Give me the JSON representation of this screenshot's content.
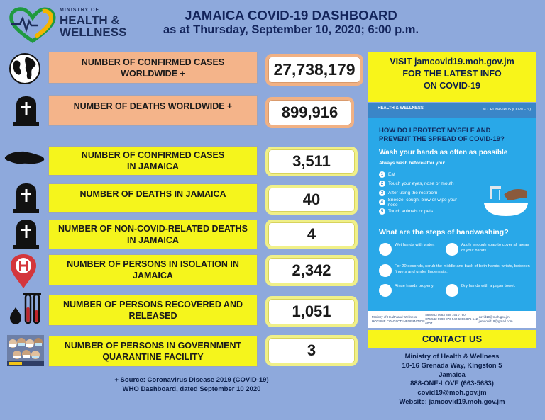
{
  "header": {
    "logo_ministry": "MINISTRY OF",
    "logo_health": "HEALTH &",
    "logo_wellness": "WELLNESS",
    "title": "JAMAICA COVID-19 DASHBOARD",
    "subtitle": "as at Thursday, September 10, 2020; 6:00 p.m."
  },
  "stats": [
    {
      "label_line1": "NUMBER OF CONFIRMED CASES",
      "label_line2": "WORLDWIDE +",
      "value": "27,738,179",
      "icon": "globe-icon"
    },
    {
      "label_line1": "NUMBER OF DEATHS WORLDWIDE +",
      "label_line2": "",
      "value": "899,916",
      "icon": "tombstone-icon"
    },
    {
      "label_line1": "NUMBER OF CONFIRMED CASES",
      "label_line2": "IN JAMAICA",
      "value": "3,511",
      "icon": "jamaica-map-icon"
    },
    {
      "label_line1": "NUMBER OF DEATHS IN JAMAICA",
      "label_line2": "",
      "value": "40",
      "icon": "tombstone-icon"
    },
    {
      "label_line1": "NUMBER OF NON-COVID-RELATED DEATHS",
      "label_line2": "IN JAMAICA",
      "value": "4",
      "icon": "tombstone-icon"
    },
    {
      "label_line1": "NUMBER OF PERSONS IN ISOLATION IN",
      "label_line2": "JAMAICA",
      "value": "2,342",
      "icon": "hospital-pin-icon"
    },
    {
      "label_line1": "NUMBER OF PERSONS RECOVERED AND",
      "label_line2": "RELEASED",
      "value": "1,051",
      "icon": "blood-test-icon"
    },
    {
      "label_line1": "NUMBER OF PERSONS IN GOVERNMENT",
      "label_line2": "QUARANTINE FACILITY",
      "value": "3",
      "icon": "masked-people-icon"
    }
  ],
  "visit": {
    "line1": "VISIT  jamcovid19.moh.gov.jm",
    "line2": "FOR THE LATEST INFO",
    "line3": "ON COVID-19"
  },
  "poster": {
    "logo": "HEALTH & WELLNESS",
    "tag": "//CORONAVIRUS (COVID-19)",
    "heading_line1": "HOW DO I PROTECT MYSELF AND",
    "heading_line2": "PREVENT THE SPREAD OF COVID-19?",
    "wash_heading": "Wash your hands as often as possible",
    "always_wash": "Always wash before/after you:",
    "items": [
      "Eat",
      "Touch your eyes, nose or mouth",
      "After using the restroom",
      "Sneeze, cough, blow or wipe your nose",
      "Touch animals or pets"
    ],
    "steps_heading": "What are the steps of handwashing?",
    "steps": [
      "Wet hands with water.",
      "Apply enough soap to cover all areas of your hands.",
      "For 20 seconds, scrub the middle and back of both hands, wrists, between fingers and under fingernails.",
      "Rinse hands properly.",
      "Dry hands with a paper towel."
    ],
    "footer_org": "Ministry of Health and Wellness",
    "footer_hotline": "HOTLINE CONTACT INFORMATION",
    "footer_phones1": "888 663 5683   888 754 7790",
    "footer_phones2": "876 542 5998   876 542 6006   876 542 6007",
    "footer_email1": "covid19@moh.gov.jm",
    "footer_email2": "jamcovid19@gmail.com"
  },
  "contact": {
    "heading": "CONTACT US",
    "lines": [
      "Ministry of Health & Wellness",
      "10-16 Grenada Way, Kingston 5",
      "Jamaica",
      "888-ONE-LOVE  (663-5683)",
      "covid19@moh.gov.jm",
      "Website: jamcovid19.moh.gov.jm"
    ]
  },
  "source": {
    "line1": "+ Source: Coronavirus Disease 2019 (COVID-19)",
    "line2": "WHO Dashboard, dated September 10 2020"
  },
  "colors": {
    "background": "#8ea9dc",
    "salmon": "#f4b48a",
    "yellow": "#f5f51c",
    "navy": "#13245b",
    "poster_blue": "#29a8e8"
  }
}
